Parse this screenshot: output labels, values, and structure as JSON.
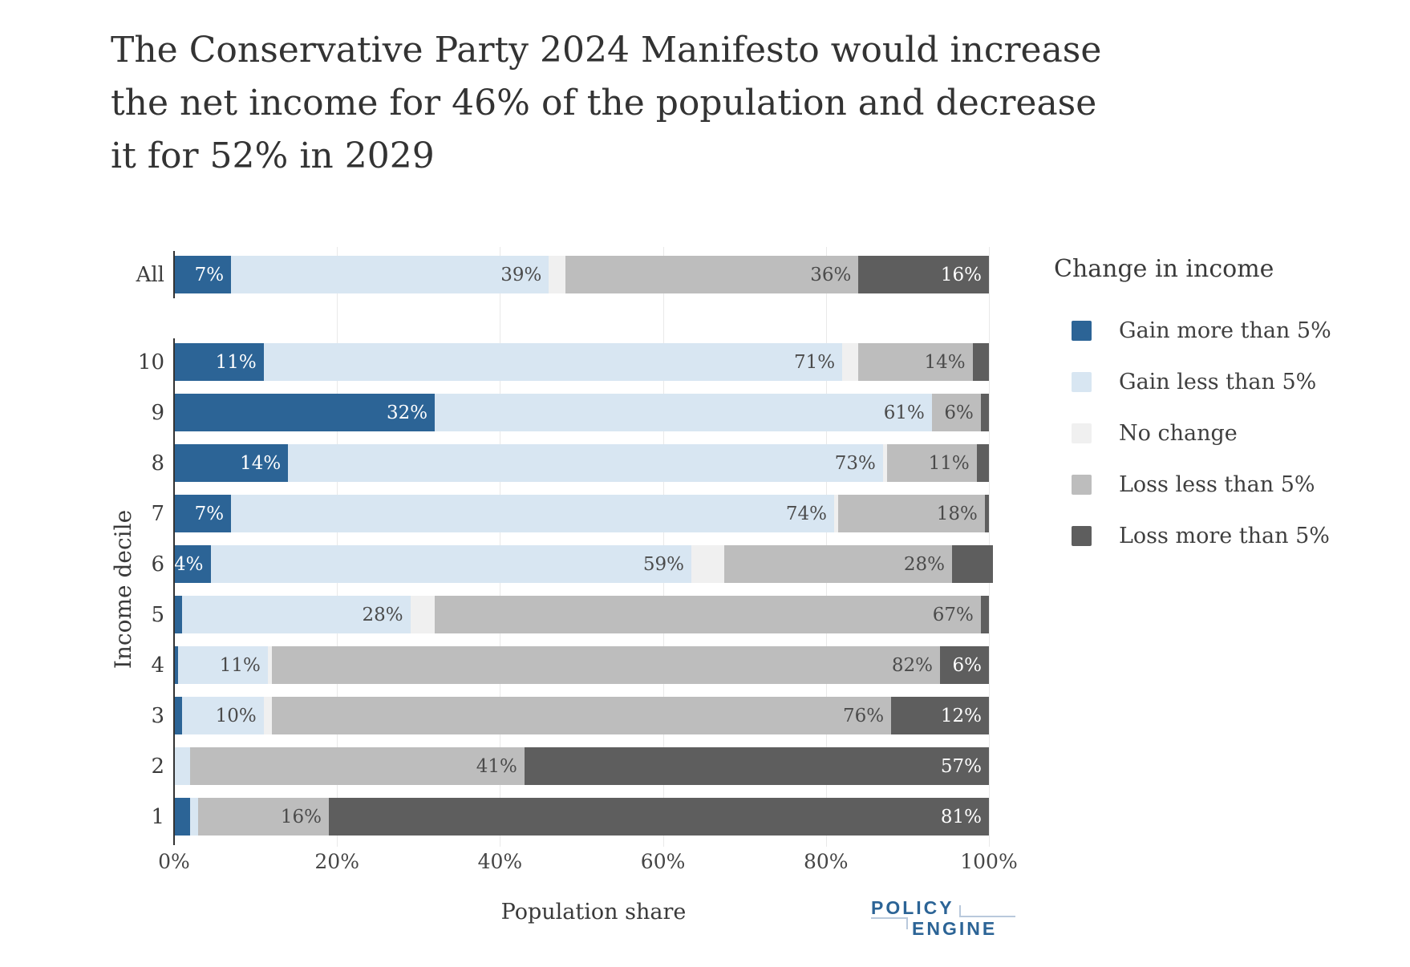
{
  "title_lines": [
    "The Conservative Party 2024 Manifesto would increase",
    "the net income for 46% of the population and decrease",
    "it for 52% in 2029"
  ],
  "chart_data": {
    "type": "bar",
    "orientation": "horizontal",
    "stacked": true,
    "title": "The Conservative Party 2024 Manifesto would increase the net income for 46% of the population and decrease it for 52% in 2029",
    "xlabel": "Population share",
    "ylabel": "Income decile",
    "xlim": [
      0,
      100
    ],
    "x_tick_labels": [
      "0%",
      "20%",
      "40%",
      "60%",
      "80%",
      "100%"
    ],
    "categories": [
      "All",
      "10",
      "9",
      "8",
      "7",
      "6",
      "5",
      "4",
      "3",
      "2",
      "1"
    ],
    "grid": true,
    "legend": {
      "title": "Change in income",
      "position": "right"
    },
    "series": [
      {
        "name": "Gain more than 5%",
        "color": "#2C6496",
        "text_color": "#ffffff",
        "values": [
          7,
          11,
          32,
          14,
          7,
          4,
          1,
          0.5,
          1,
          0,
          2
        ],
        "labels": [
          "7%",
          "11%",
          "32%",
          "14%",
          "7%",
          "4%",
          null,
          null,
          null,
          null,
          null
        ]
      },
      {
        "name": "Gain less than 5%",
        "color": "#D8E6F2",
        "text_color": "#4b4b4b",
        "values": [
          39,
          71,
          61,
          73,
          74,
          59,
          28,
          11,
          10,
          2,
          1
        ],
        "labels": [
          "39%",
          "71%",
          "61%",
          "73%",
          "74%",
          "59%",
          "28%",
          "11%",
          "10%",
          null,
          null
        ]
      },
      {
        "name": "No change",
        "color": "#F0F0F0",
        "text_color": "#4b4b4b",
        "values": [
          2,
          2,
          0,
          0.5,
          0.5,
          4,
          3,
          0.5,
          1,
          0,
          0
        ],
        "labels": [
          null,
          null,
          null,
          null,
          null,
          null,
          null,
          null,
          null,
          null,
          null
        ]
      },
      {
        "name": "Loss less than 5%",
        "color": "#BDBDBD",
        "text_color": "#4b4b4b",
        "values": [
          36,
          14,
          6,
          11,
          18,
          28,
          67,
          82,
          76,
          41,
          16
        ],
        "labels": [
          "36%",
          "14%",
          "6%",
          "11%",
          "18%",
          "28%",
          "67%",
          "82%",
          "76%",
          "41%",
          "16%"
        ]
      },
      {
        "name": "Loss more than 5%",
        "color": "#5E5E5E",
        "text_color": "#ffffff",
        "values": [
          16,
          2,
          1,
          1.5,
          0.5,
          5,
          1,
          6,
          12,
          57,
          81
        ],
        "labels": [
          "16%",
          null,
          null,
          null,
          null,
          null,
          null,
          "6%",
          "12%",
          "57%",
          "81%"
        ]
      }
    ]
  },
  "branding": {
    "top": "POLICY",
    "bottom": "ENGINE",
    "color": "#2C6496"
  }
}
